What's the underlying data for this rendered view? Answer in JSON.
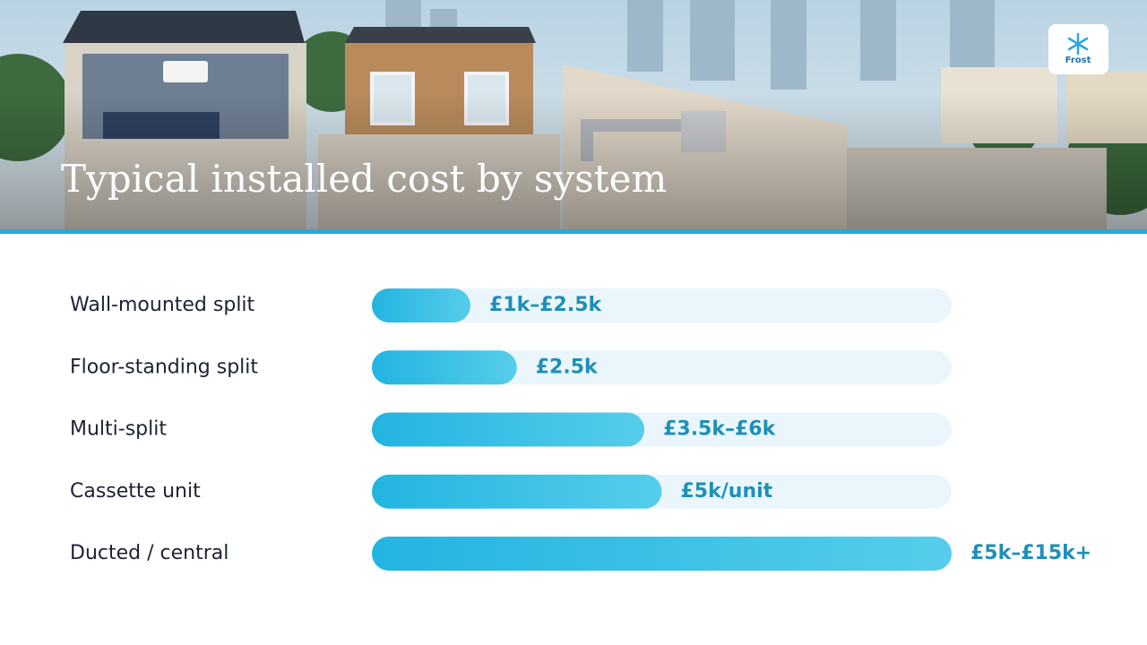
{
  "chart_data": {
    "type": "bar",
    "orientation": "horizontal",
    "title": "Typical installed cost by system",
    "brand": "Frost",
    "categories": [
      "Wall-mounted split",
      "Floor-standing split",
      "Multi-split",
      "Cassette unit",
      "Ducted / central"
    ],
    "values": [
      17,
      25,
      47,
      50,
      100
    ],
    "xlim": [
      0,
      100
    ],
    "cost_labels": [
      "£1k–£2.5k",
      "£2.5k",
      "£3.5k–£6k",
      "£5k/unit",
      "£5k–£15k+"
    ],
    "color": "#22b4e0",
    "track_color": "#eaf6fb"
  }
}
